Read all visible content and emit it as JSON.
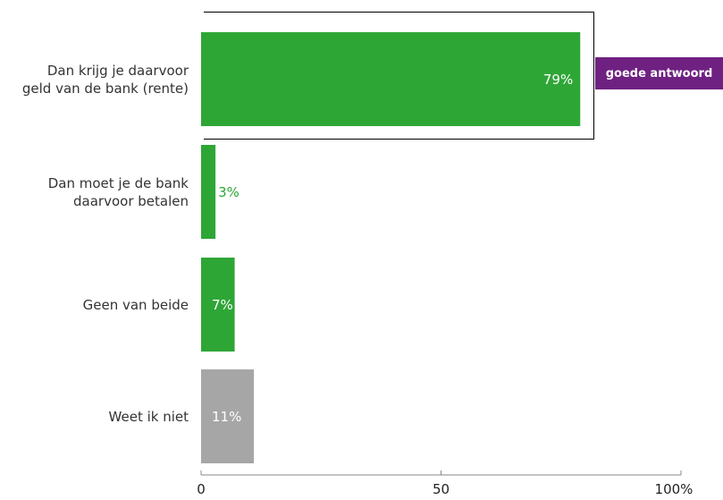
{
  "chart_data": {
    "type": "bar",
    "orientation": "horizontal",
    "categories": [
      "Dan krijg je daarvoor\ngeld van de bank (rente)",
      "Dan moet je de bank\ndaarvoor betalen",
      "Geen van beide",
      "Weet ik niet"
    ],
    "values": [
      79,
      3,
      7,
      11
    ],
    "value_labels": [
      "79%",
      "3%",
      "7%",
      "11%"
    ],
    "bar_colors": [
      "#2ea636",
      "#2ea636",
      "#2ea636",
      "#a6a6a6"
    ],
    "value_label_colors": [
      "#ffffff",
      "#2ea636",
      "#ffffff",
      "#ffffff"
    ],
    "xlim": [
      0,
      100
    ],
    "x_ticks": [
      "0",
      "50",
      "100%"
    ],
    "x_tick_values": [
      0,
      50,
      100
    ],
    "grid": false,
    "highlight": {
      "category_index": 0,
      "badge": "goede antwoord",
      "badge_color": "#6f2182"
    }
  }
}
